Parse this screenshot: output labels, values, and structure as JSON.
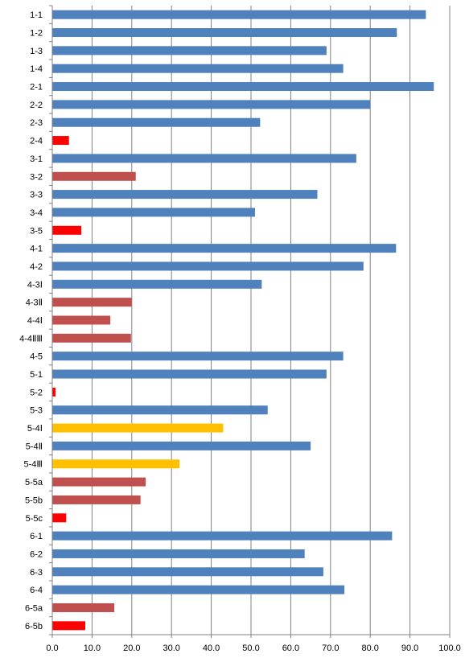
{
  "chart_data": {
    "type": "bar",
    "orientation": "horizontal",
    "title": "",
    "xlabel": "",
    "ylabel": "",
    "xlim": [
      0,
      100
    ],
    "x_ticks": [
      "0.0",
      "10.0",
      "20.0",
      "30.0",
      "40.0",
      "50.0",
      "60.0",
      "70.0",
      "80.0",
      "90.0",
      "100.0"
    ],
    "grid": "vertical",
    "legend": "none",
    "colors": {
      "blue": "#4f81bd",
      "dark_red": "#c0504d",
      "red": "#ff0000",
      "gold": "#ffc000",
      "grid": "#808080"
    },
    "categories": [
      "1-1",
      "1-2",
      "1-3",
      "1-4",
      "2-1",
      "2-2",
      "2-3",
      "2-4",
      "3-1",
      "3-2",
      "3-3",
      "3-4",
      "3-5",
      "4-1",
      "4-2",
      "4-3Ⅰ",
      "4-3Ⅱ",
      "4-4Ⅰ",
      "4-4ⅡⅢ",
      "4-5",
      "5-1",
      "5-2",
      "5-3",
      "5-4Ⅰ",
      "5-4Ⅱ",
      "5-4Ⅲ",
      "5-5a",
      "5-5b",
      "5-5c",
      "6-1",
      "6-2",
      "6-3",
      "6-4",
      "6-5a",
      "6-5b"
    ],
    "values": [
      94.0,
      86.7,
      69.0,
      73.2,
      96.0,
      80.0,
      52.3,
      4.2,
      76.5,
      21.0,
      66.7,
      51.0,
      7.3,
      86.5,
      78.3,
      52.7,
      20.0,
      14.6,
      19.8,
      73.2,
      69.0,
      0.8,
      54.2,
      43.0,
      65.0,
      32.0,
      23.5,
      22.2,
      3.5,
      85.5,
      63.5,
      68.2,
      73.5,
      15.6,
      8.3
    ],
    "bar_colors": [
      "blue",
      "blue",
      "blue",
      "blue",
      "blue",
      "blue",
      "blue",
      "red",
      "blue",
      "dark_red",
      "blue",
      "blue",
      "red",
      "blue",
      "blue",
      "blue",
      "dark_red",
      "dark_red",
      "dark_red",
      "blue",
      "blue",
      "red",
      "blue",
      "gold",
      "blue",
      "gold",
      "dark_red",
      "dark_red",
      "red",
      "blue",
      "blue",
      "blue",
      "blue",
      "dark_red",
      "red"
    ]
  }
}
